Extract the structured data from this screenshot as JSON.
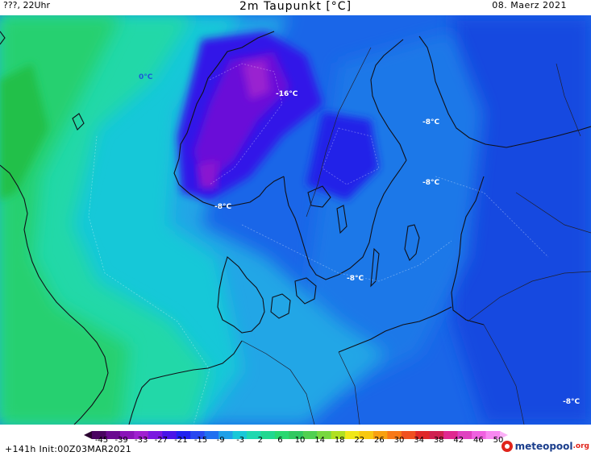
{
  "header": {
    "left": "???, 22Uhr",
    "title": "2m Taupunkt [°C]",
    "date": "08. Maerz 2021"
  },
  "map_labels": [
    {
      "text": "0°C",
      "style": "blue"
    },
    {
      "text": "-16°C",
      "style": "white"
    },
    {
      "text": "-8°C",
      "style": "white"
    },
    {
      "text": "-8°C",
      "style": "white"
    },
    {
      "text": "-8°C",
      "style": "white"
    },
    {
      "text": "-8°C",
      "style": "white"
    },
    {
      "text": "-8°C",
      "style": "white"
    }
  ],
  "legend": {
    "ticks": [
      "-45",
      "-39",
      "-33",
      "-27",
      "-21",
      "-15",
      "-9",
      "-3",
      "2",
      "6",
      "10",
      "14",
      "18",
      "22",
      "26",
      "30",
      "34",
      "38",
      "42",
      "46",
      "50"
    ],
    "colors": [
      "#2a0230",
      "#4a0560",
      "#6a0a90",
      "#8a14b8",
      "#a020d0",
      "#7a18e0",
      "#4a14e8",
      "#2020f0",
      "#2848f0",
      "#2070f0",
      "#20a0e8",
      "#18c8d8",
      "#20d8b0",
      "#20d890",
      "#28d870",
      "#30c860",
      "#50d050",
      "#78d840",
      "#b0e020",
      "#f0e818",
      "#f8c810",
      "#f8a010",
      "#f87818",
      "#f05020",
      "#e02828",
      "#d02050",
      "#e02890",
      "#e040c0",
      "#f060e0",
      "#f888f0",
      "#fcb0f8"
    ]
  },
  "footer": {
    "run_info": "+141h Init:00Z03MAR2021",
    "brand_main": "meteopool",
    "brand_tld": ".org"
  }
}
